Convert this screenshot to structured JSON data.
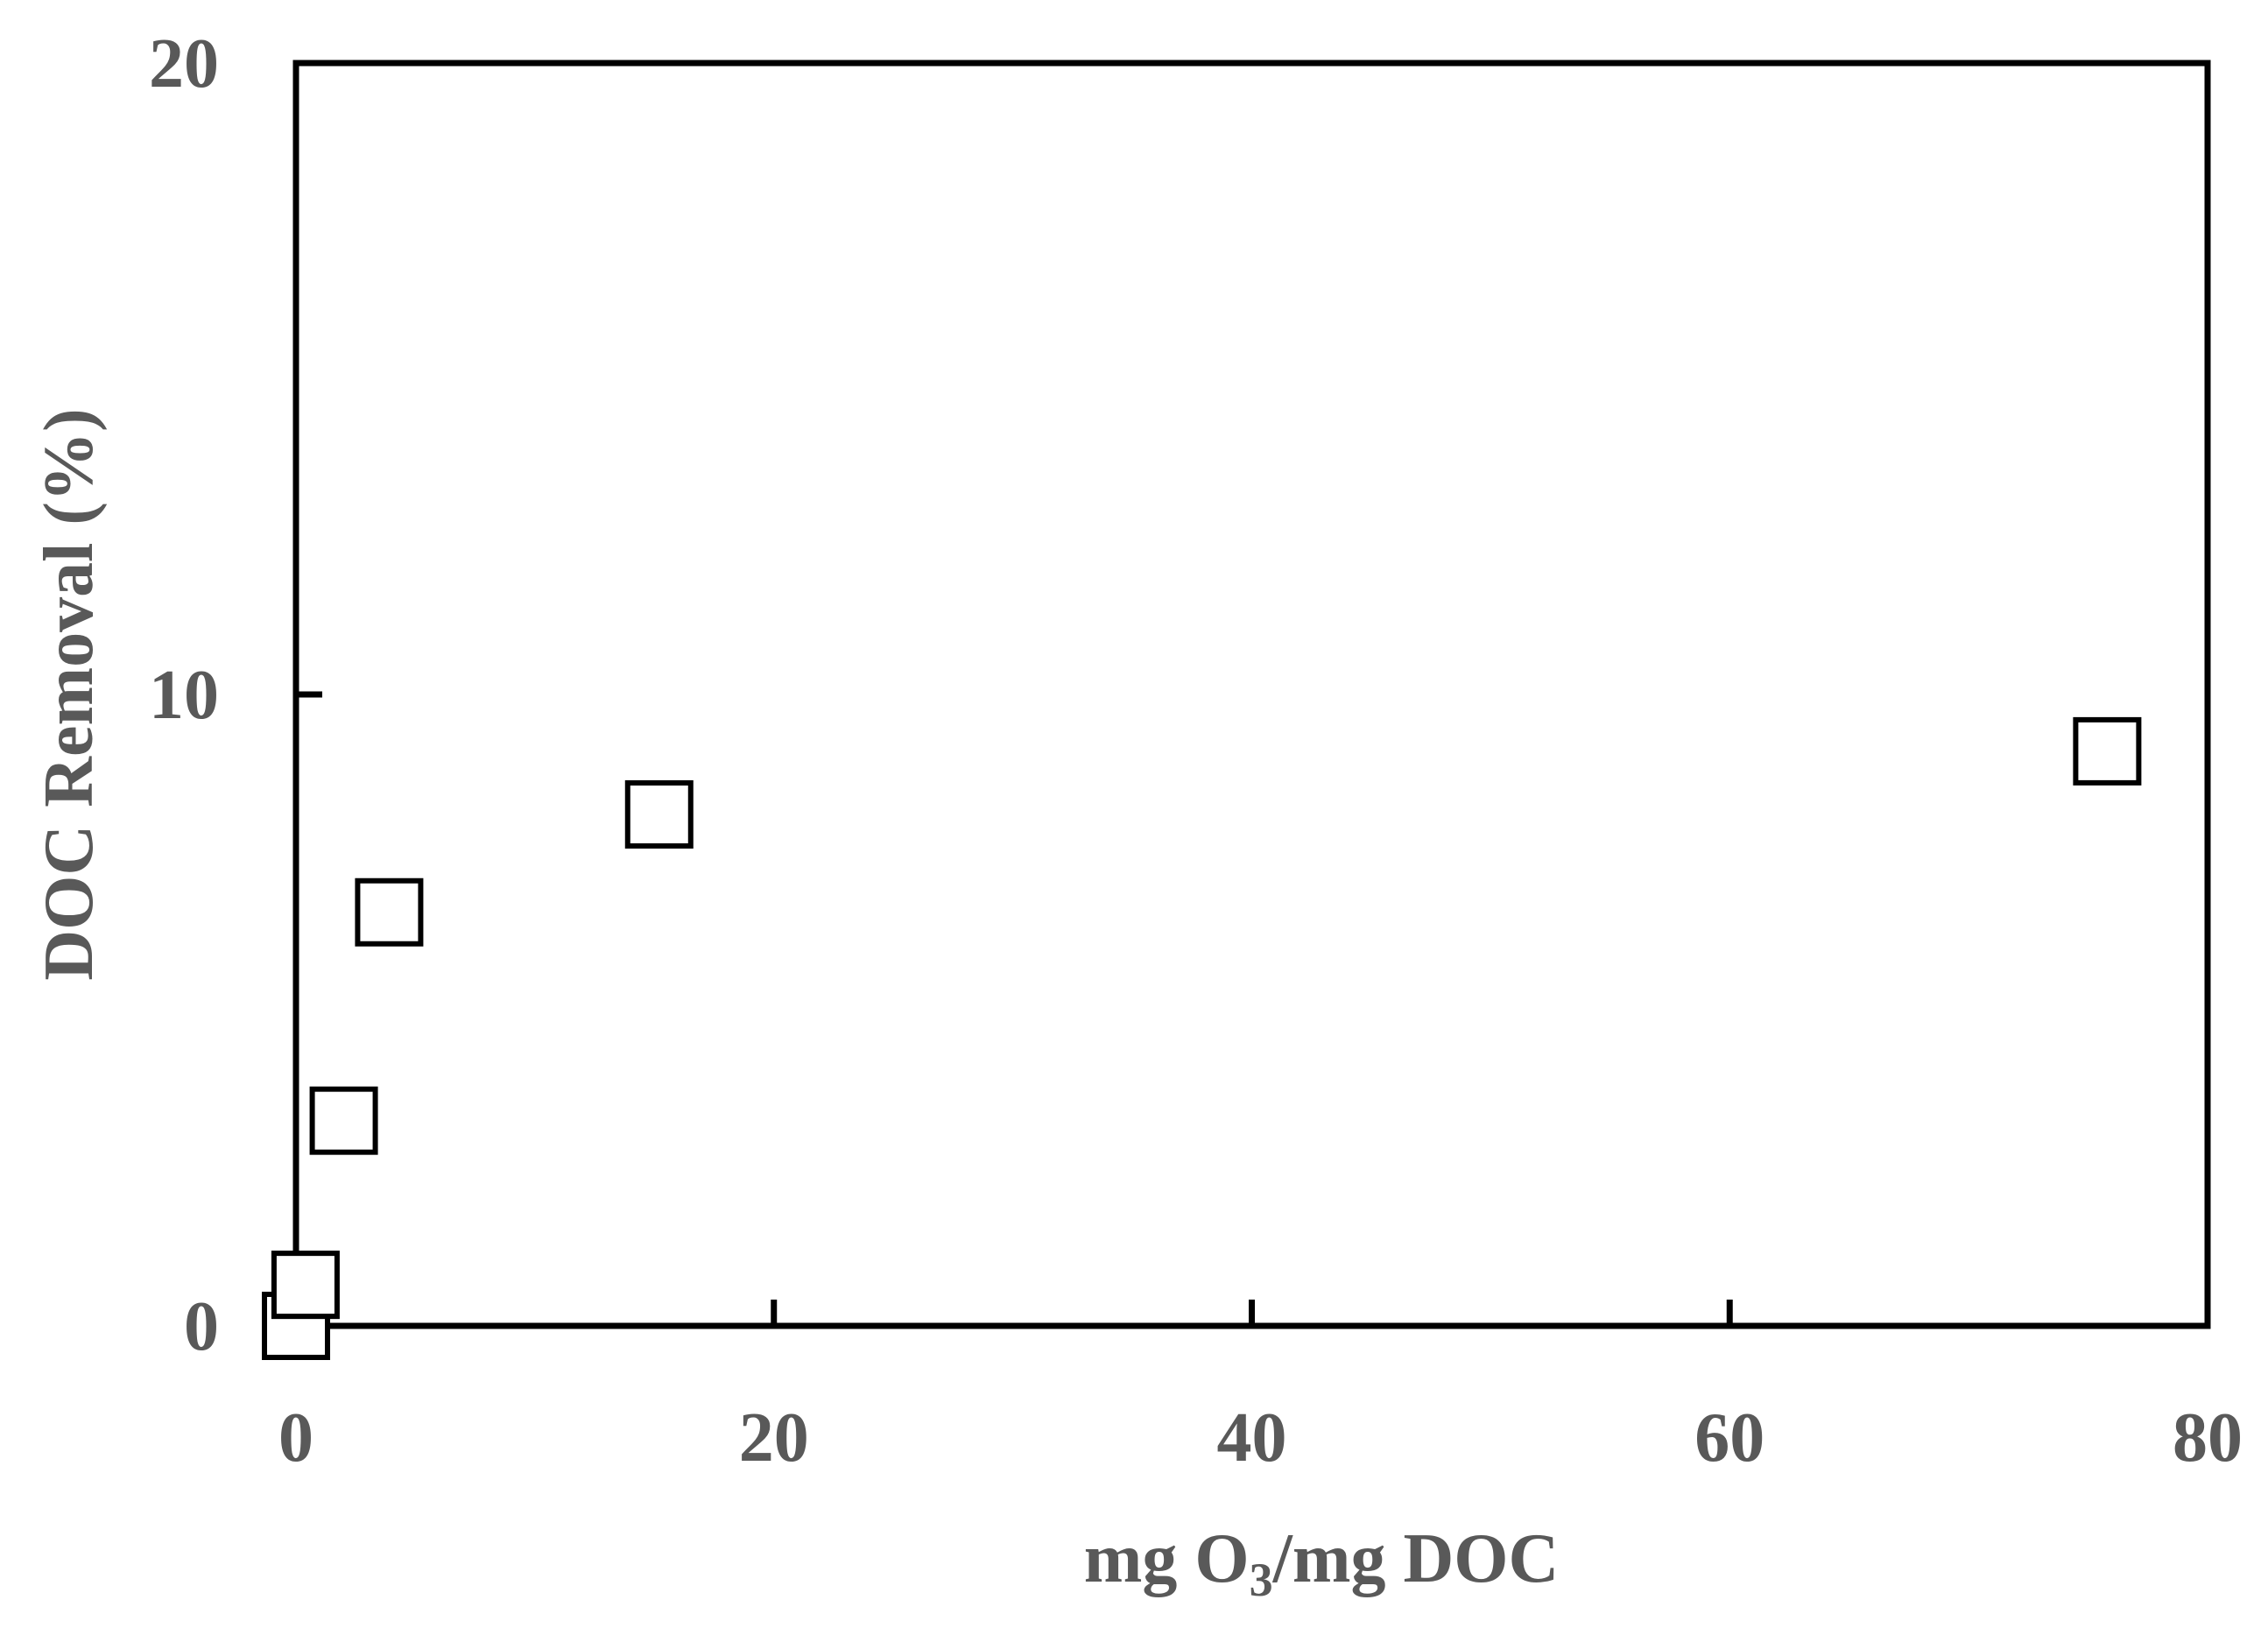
{
  "chart_data": {
    "type": "scatter",
    "title": "",
    "xlabel": {
      "prefix": "mg O",
      "subscript": "3",
      "suffix": "/mg DOC"
    },
    "ylabel": "DOC Removal (%)",
    "xlim": [
      0,
      80
    ],
    "ylim": [
      0,
      20
    ],
    "x_ticks": [
      0,
      20,
      40,
      60,
      80
    ],
    "y_ticks": [
      0,
      10,
      20
    ],
    "grid": false,
    "legend": "none",
    "marker": "open-square",
    "colors": {
      "axis": "#000000",
      "label": "#595959",
      "marker_stroke": "#000000",
      "marker_fill": "#ffffff"
    },
    "series": [
      {
        "x": [
          0,
          0.4,
          2.0,
          3.9,
          15.2,
          75.8
        ],
        "y": [
          0,
          0.65,
          3.25,
          6.55,
          8.1,
          9.1
        ]
      }
    ]
  }
}
